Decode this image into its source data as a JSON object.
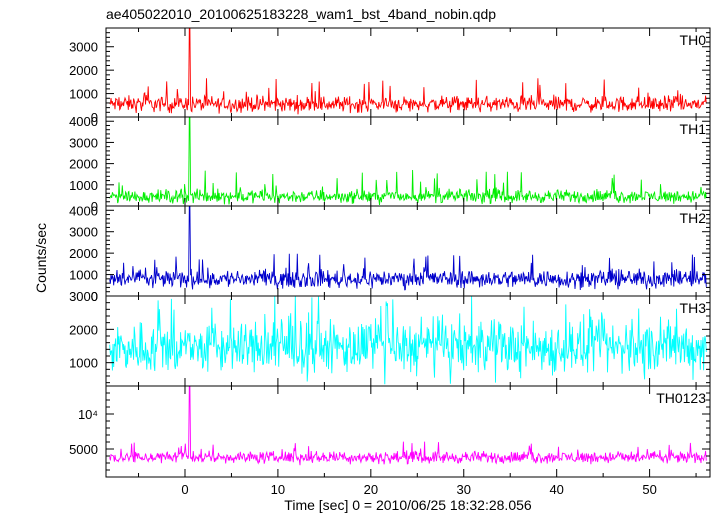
{
  "chart_data": {
    "type": "line",
    "title": "ae405022010_20100625183228_wam1_bst_4band_nobin.qdp",
    "xlabel": "Time [sec] 0 = 2010/06/25 18:32:28.056",
    "ylabel": "Counts/sec",
    "xlim": [
      -8.5,
      56.5
    ],
    "x_ticks": [
      "0",
      "10",
      "20",
      "30",
      "40",
      "50"
    ],
    "x_tick_values": [
      0,
      10,
      20,
      30,
      40,
      50
    ],
    "panels": [
      {
        "name": "TH0",
        "color": "#ff0000",
        "ylim": [
          0,
          3800
        ],
        "y_ticks": [
          "0",
          "1000",
          "2000",
          "3000"
        ],
        "y_tick_values": [
          0,
          1000,
          2000,
          3000
        ],
        "baseline": 550,
        "noise_amplitude": 280,
        "max_spikes": 1700,
        "spike": {
          "x": 0.5,
          "peak": 3800
        }
      },
      {
        "name": "TH1",
        "color": "#00ee00",
        "ylim": [
          0,
          4200
        ],
        "y_ticks": [
          "0",
          "1000",
          "2000",
          "3000",
          "4000"
        ],
        "y_tick_values": [
          0,
          1000,
          2000,
          3000,
          4000
        ],
        "baseline": 450,
        "noise_amplitude": 250,
        "max_spikes": 1700,
        "spike": {
          "x": 0.5,
          "peak": 4200
        }
      },
      {
        "name": "TH2",
        "color": "#0000cc",
        "ylim": [
          0,
          4200
        ],
        "y_ticks": [
          "0",
          "1000",
          "2000",
          "3000",
          "4000"
        ],
        "y_tick_values": [
          0,
          1000,
          2000,
          3000,
          4000
        ],
        "baseline": 800,
        "noise_amplitude": 350,
        "max_spikes": 2000,
        "spike": {
          "x": 0.5,
          "peak": 4200
        }
      },
      {
        "name": "TH3",
        "color": "#00ffff",
        "ylim": [
          300,
          3000
        ],
        "y_ticks": [
          "1000",
          "2000",
          "3000"
        ],
        "y_tick_values": [
          1000,
          2000,
          3000
        ],
        "baseline": 1450,
        "noise_amplitude": 650,
        "max_spikes": 3000,
        "spike": null
      },
      {
        "name": "TH0123",
        "color": "#ff00ff",
        "ylim": [
          1000,
          14000
        ],
        "y_ticks": [
          "5000",
          "10⁴"
        ],
        "y_tick_values": [
          5000,
          10000
        ],
        "baseline": 3800,
        "noise_amplitude": 700,
        "max_spikes": 6200,
        "spike": {
          "x": 0.5,
          "peak": 14000
        }
      }
    ]
  }
}
